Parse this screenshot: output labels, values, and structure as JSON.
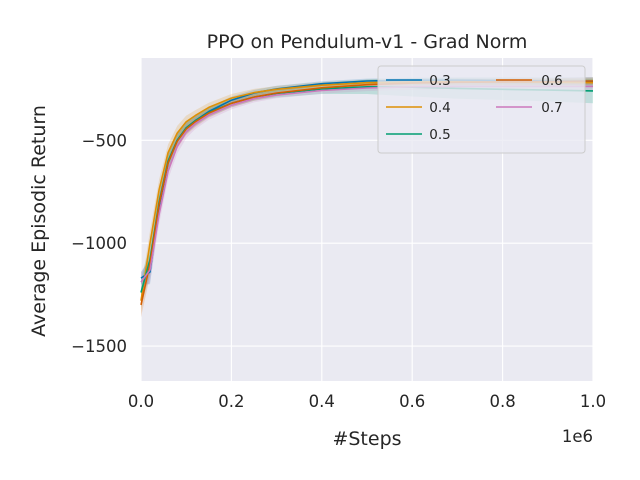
{
  "chart_data": {
    "type": "line",
    "title": "PPO on Pendulum-v1 - Grad Norm",
    "xlabel": "#Steps",
    "ylabel": "Average Episodic Return",
    "x_offset_label": "1e6",
    "xlim": [
      0.0,
      1.0
    ],
    "ylim": [
      -1670,
      -100
    ],
    "x_ticks": [
      0.0,
      0.2,
      0.4,
      0.6,
      0.8,
      1.0
    ],
    "x_tick_labels": [
      "0.0",
      "0.2",
      "0.4",
      "0.6",
      "0.8",
      "1.0"
    ],
    "y_ticks": [
      -1500,
      -1000,
      -500
    ],
    "y_tick_labels": [
      "−1500",
      "−1000",
      "−500"
    ],
    "grid": true,
    "legend": {
      "placement": "top-right",
      "columns": 2
    },
    "x": [
      0.0,
      0.02,
      0.04,
      0.06,
      0.08,
      0.1,
      0.12,
      0.15,
      0.2,
      0.25,
      0.3,
      0.4,
      0.5,
      0.6,
      0.7,
      0.8,
      0.9,
      1.0
    ],
    "series": [
      {
        "name": "0.3",
        "color": "#0173b2",
        "values": [
          -1170,
          -1140,
          -820,
          -610,
          -500,
          -440,
          -405,
          -360,
          -305,
          -270,
          -250,
          -225,
          -212,
          -208,
          -208,
          -210,
          -212,
          -213
        ],
        "band": [
          30,
          60,
          50,
          40,
          30,
          25,
          22,
          20,
          18,
          15,
          15,
          12,
          12,
          12,
          14,
          16,
          18,
          20
        ]
      },
      {
        "name": "0.4",
        "color": "#de8f05",
        "values": [
          -1280,
          -1000,
          -740,
          -560,
          -465,
          -410,
          -380,
          -340,
          -295,
          -268,
          -252,
          -232,
          -220,
          -216,
          -215,
          -217,
          -218,
          -220
        ],
        "band": [
          60,
          60,
          50,
          40,
          35,
          30,
          26,
          22,
          20,
          18,
          16,
          15,
          14,
          14,
          15,
          16,
          18,
          20
        ]
      },
      {
        "name": "0.5",
        "color": "#029e73",
        "values": [
          -1240,
          -1080,
          -800,
          -600,
          -500,
          -440,
          -405,
          -365,
          -320,
          -290,
          -272,
          -250,
          -240,
          -242,
          -248,
          -252,
          -256,
          -260
        ],
        "band": [
          70,
          70,
          50,
          40,
          35,
          30,
          26,
          22,
          20,
          18,
          20,
          25,
          35,
          45,
          50,
          52,
          55,
          60
        ]
      },
      {
        "name": "0.6",
        "color": "#d55e00",
        "values": [
          -1300,
          -1100,
          -810,
          -610,
          -505,
          -445,
          -410,
          -368,
          -320,
          -290,
          -270,
          -245,
          -230,
          -222,
          -218,
          -216,
          -214,
          -212
        ],
        "band": [
          60,
          60,
          50,
          40,
          35,
          30,
          26,
          22,
          20,
          18,
          16,
          14,
          14,
          14,
          14,
          15,
          16,
          18
        ]
      },
      {
        "name": "0.7",
        "color": "#cc78bc",
        "values": [
          -1190,
          -1130,
          -860,
          -650,
          -530,
          -460,
          -420,
          -378,
          -330,
          -298,
          -280,
          -258,
          -246,
          -240,
          -238,
          -238,
          -238,
          -238
        ],
        "band": [
          50,
          60,
          50,
          40,
          35,
          30,
          26,
          22,
          20,
          18,
          16,
          15,
          15,
          15,
          15,
          16,
          18,
          20
        ]
      }
    ]
  }
}
